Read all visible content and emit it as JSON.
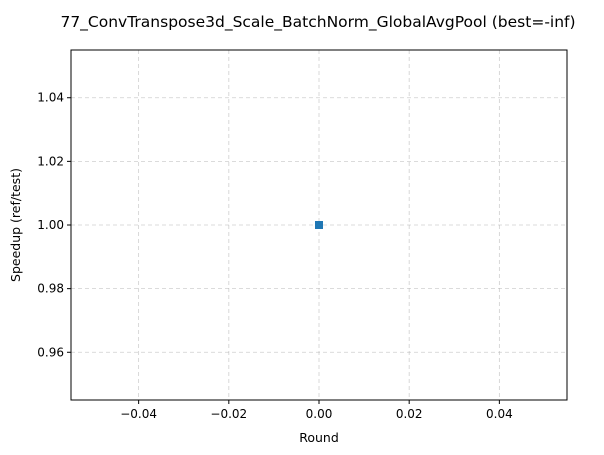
{
  "chart_data": {
    "type": "line",
    "title": "77_ConvTranspose3d_Scale_BatchNorm_GlobalAvgPool (best=-inf)",
    "xlabel": "Round",
    "ylabel": "Speedup (ref/test)",
    "xlim": [
      -0.055,
      0.055
    ],
    "ylim": [
      0.945,
      1.055
    ],
    "xticks": [
      -0.04,
      -0.02,
      0.0,
      0.02,
      0.04
    ],
    "xtick_labels": [
      "−0.04",
      "−0.02",
      "0.00",
      "0.02",
      "0.04"
    ],
    "yticks": [
      0.96,
      0.98,
      1.0,
      1.02,
      1.04
    ],
    "ytick_labels": [
      "0.96",
      "0.98",
      "1.00",
      "1.02",
      "1.04"
    ],
    "grid": true,
    "series": [
      {
        "x": [
          0
        ],
        "y": [
          1.0
        ],
        "color": "#1f77b4",
        "marker": "square"
      }
    ]
  }
}
